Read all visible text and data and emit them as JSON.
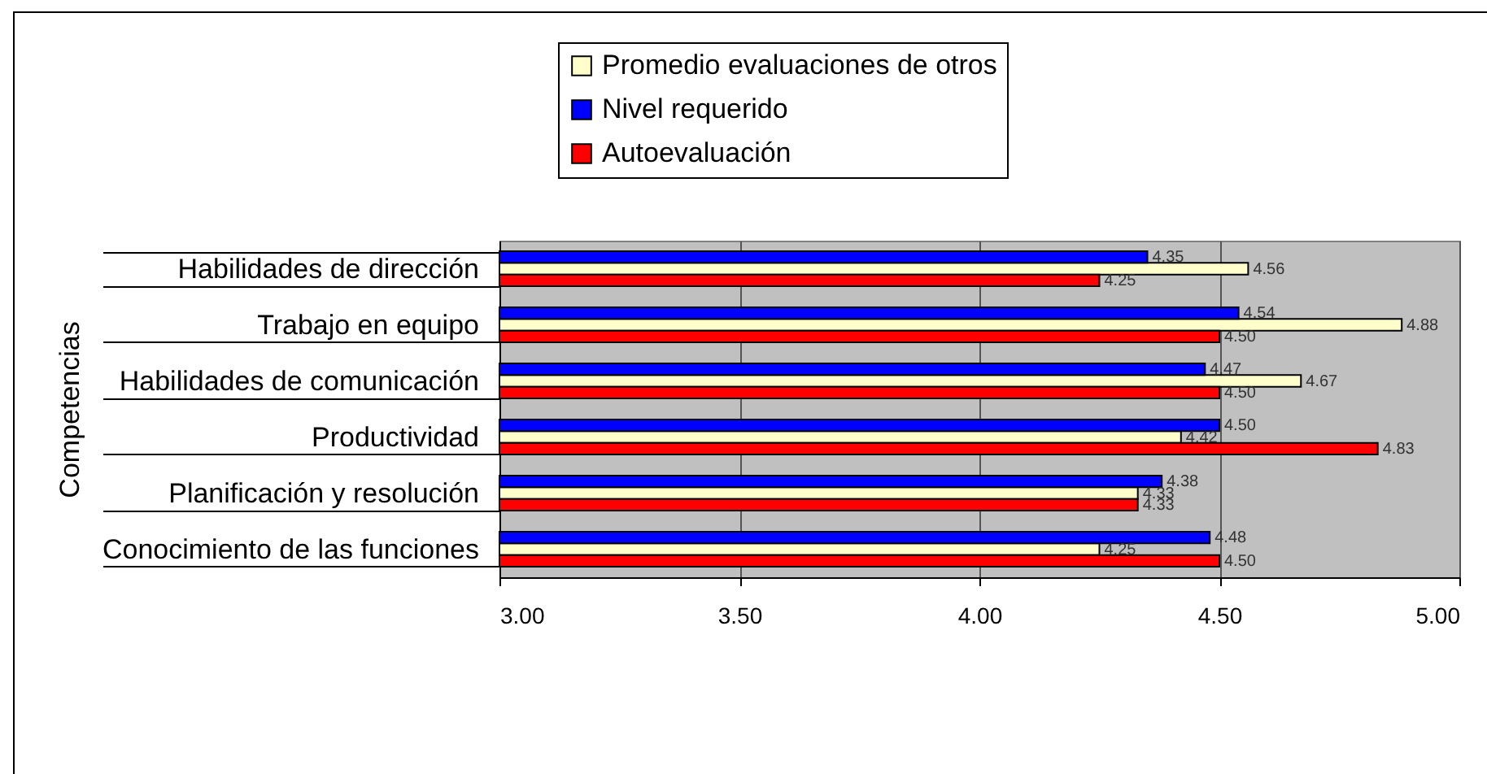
{
  "chart_data": {
    "type": "bar",
    "orientation": "horizontal",
    "ylabel": "Competencias",
    "categories": [
      "Habilidades de dirección",
      "Trabajo en equipo",
      "Habilidades de comunicación",
      "Productividad",
      "Planificación y resolución",
      "Conocimiento de las funciones"
    ],
    "series": [
      {
        "name": "Promedio evaluaciones de otros",
        "color": "#ffffcc",
        "values": [
          4.56,
          4.88,
          4.67,
          4.42,
          4.33,
          4.25
        ],
        "value_labels": [
          "4.56",
          "4.88",
          "4.67",
          "4.42",
          "4.33",
          "4.25"
        ]
      },
      {
        "name": "Nivel requerido",
        "color": "#0000ff",
        "values": [
          4.35,
          4.54,
          4.47,
          4.5,
          4.38,
          4.48
        ],
        "value_labels": [
          "4.35",
          "4.54",
          "4.47",
          "4.50",
          "4.38",
          "4.48"
        ]
      },
      {
        "name": "Autoevaluación",
        "color": "#ff0000",
        "values": [
          4.25,
          4.5,
          4.5,
          4.83,
          4.33,
          4.5
        ],
        "value_labels": [
          "4.25",
          "4.50",
          "4.50",
          "4.83",
          "4.33",
          "4.50"
        ]
      }
    ],
    "xlim": [
      3,
      5
    ],
    "xticks": [
      {
        "value": 3,
        "label": "3.00"
      },
      {
        "value": 3.5,
        "label": "3.50"
      },
      {
        "value": 4,
        "label": "4.00"
      },
      {
        "value": 4.5,
        "label": "4.50"
      },
      {
        "value": 5,
        "label": "5.00"
      }
    ],
    "grid": "x",
    "legend": "top"
  }
}
